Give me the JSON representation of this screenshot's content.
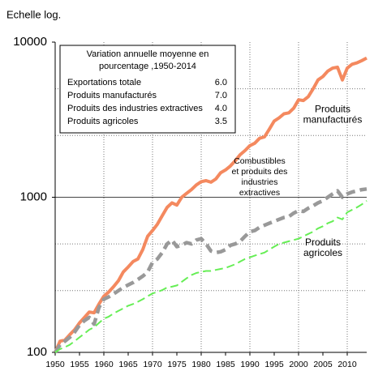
{
  "chart_data": {
    "type": "line",
    "axis_note": "Echelle log.",
    "x": [
      1950,
      1951,
      1952,
      1953,
      1954,
      1955,
      1956,
      1957,
      1958,
      1959,
      1960,
      1961,
      1962,
      1963,
      1964,
      1965,
      1966,
      1967,
      1968,
      1969,
      1970,
      1971,
      1972,
      1973,
      1974,
      1975,
      1976,
      1977,
      1978,
      1979,
      1980,
      1981,
      1982,
      1983,
      1984,
      1985,
      1986,
      1987,
      1988,
      1989,
      1990,
      1991,
      1992,
      1993,
      1994,
      1995,
      1996,
      1997,
      1998,
      1999,
      2000,
      2001,
      2002,
      2003,
      2004,
      2005,
      2006,
      2007,
      2008,
      2009,
      2010,
      2011,
      2012,
      2013,
      2014
    ],
    "series": [
      {
        "name": "Produits manufacturés",
        "color": "#f4895f",
        "style": "solid",
        "values": [
          100,
          118,
          120,
          130,
          140,
          155,
          168,
          182,
          180,
          205,
          230,
          245,
          265,
          290,
          330,
          355,
          385,
          400,
          460,
          560,
          610,
          670,
          760,
          860,
          920,
          890,
          1000,
          1060,
          1120,
          1200,
          1260,
          1280,
          1250,
          1310,
          1440,
          1500,
          1590,
          1720,
          1880,
          2000,
          2150,
          2230,
          2400,
          2450,
          2750,
          3100,
          3250,
          3450,
          3500,
          3750,
          4250,
          4200,
          4450,
          5000,
          5700,
          6000,
          6500,
          6800,
          6900,
          5700,
          6800,
          7200,
          7350,
          7600,
          7900
        ]
      },
      {
        "name": "Combustibles et produits des industries extractives",
        "color": "#999999",
        "style": "dashed",
        "values": [
          100,
          112,
          118,
          125,
          135,
          150,
          160,
          168,
          152,
          195,
          220,
          228,
          238,
          250,
          262,
          272,
          282,
          295,
          310,
          330,
          380,
          400,
          440,
          500,
          530,
          480,
          490,
          510,
          500,
          530,
          540,
          500,
          450,
          440,
          445,
          460,
          490,
          500,
          520,
          560,
          600,
          610,
          640,
          660,
          680,
          700,
          720,
          740,
          750,
          790,
          820,
          810,
          850,
          880,
          920,
          950,
          1000,
          1050,
          1100,
          1000,
          1050,
          1080,
          1100,
          1120,
          1130
        ]
      },
      {
        "name": "Produits agricoles",
        "color": "#66ee55",
        "style": "dashed-thin",
        "values": [
          100,
          105,
          108,
          112,
          118,
          125,
          132,
          140,
          145,
          155,
          165,
          170,
          178,
          185,
          192,
          200,
          205,
          212,
          220,
          230,
          240,
          245,
          252,
          262,
          265,
          270,
          285,
          300,
          315,
          325,
          330,
          335,
          335,
          340,
          345,
          350,
          360,
          370,
          385,
          400,
          410,
          420,
          430,
          440,
          460,
          480,
          500,
          510,
          520,
          530,
          540,
          560,
          580,
          600,
          630,
          650,
          680,
          700,
          740,
          720,
          800,
          830,
          860,
          900,
          950
        ]
      }
    ],
    "annotations": [
      {
        "lines": [
          "Produits",
          "manufacturés"
        ],
        "x": 2007,
        "y": 3400
      },
      {
        "lines": [
          "Combustibles",
          "et produits des",
          "industries",
          "extractives"
        ],
        "x": 1992,
        "y": 1350
      },
      {
        "lines": [
          "Produits",
          "agricoles"
        ],
        "x": 2005,
        "y": 470
      }
    ],
    "xlim": [
      1950,
      2014
    ],
    "xticks": [
      1950,
      1955,
      1960,
      1965,
      1970,
      1975,
      1980,
      1985,
      1990,
      1995,
      2000,
      2005,
      2010
    ],
    "xgrid": [
      1960,
      1970,
      1980,
      1990,
      2000,
      2010
    ],
    "ylim": [
      100,
      10000
    ],
    "yticks": [
      100,
      1000,
      10000
    ],
    "ygrid_minor": [
      250,
      500,
      2500,
      5000
    ],
    "ylog": true,
    "inset": {
      "title": [
        "Variation annuelle moyenne en",
        "pourcentage ,1950-2014"
      ],
      "rows": [
        [
          "Exportations totale",
          "6.0"
        ],
        [
          "Produits manufacturés",
          "7.0"
        ],
        [
          "Produits des  industries extractives",
          "4.0"
        ],
        [
          "Produits agricoles",
          "3.5"
        ]
      ]
    }
  }
}
